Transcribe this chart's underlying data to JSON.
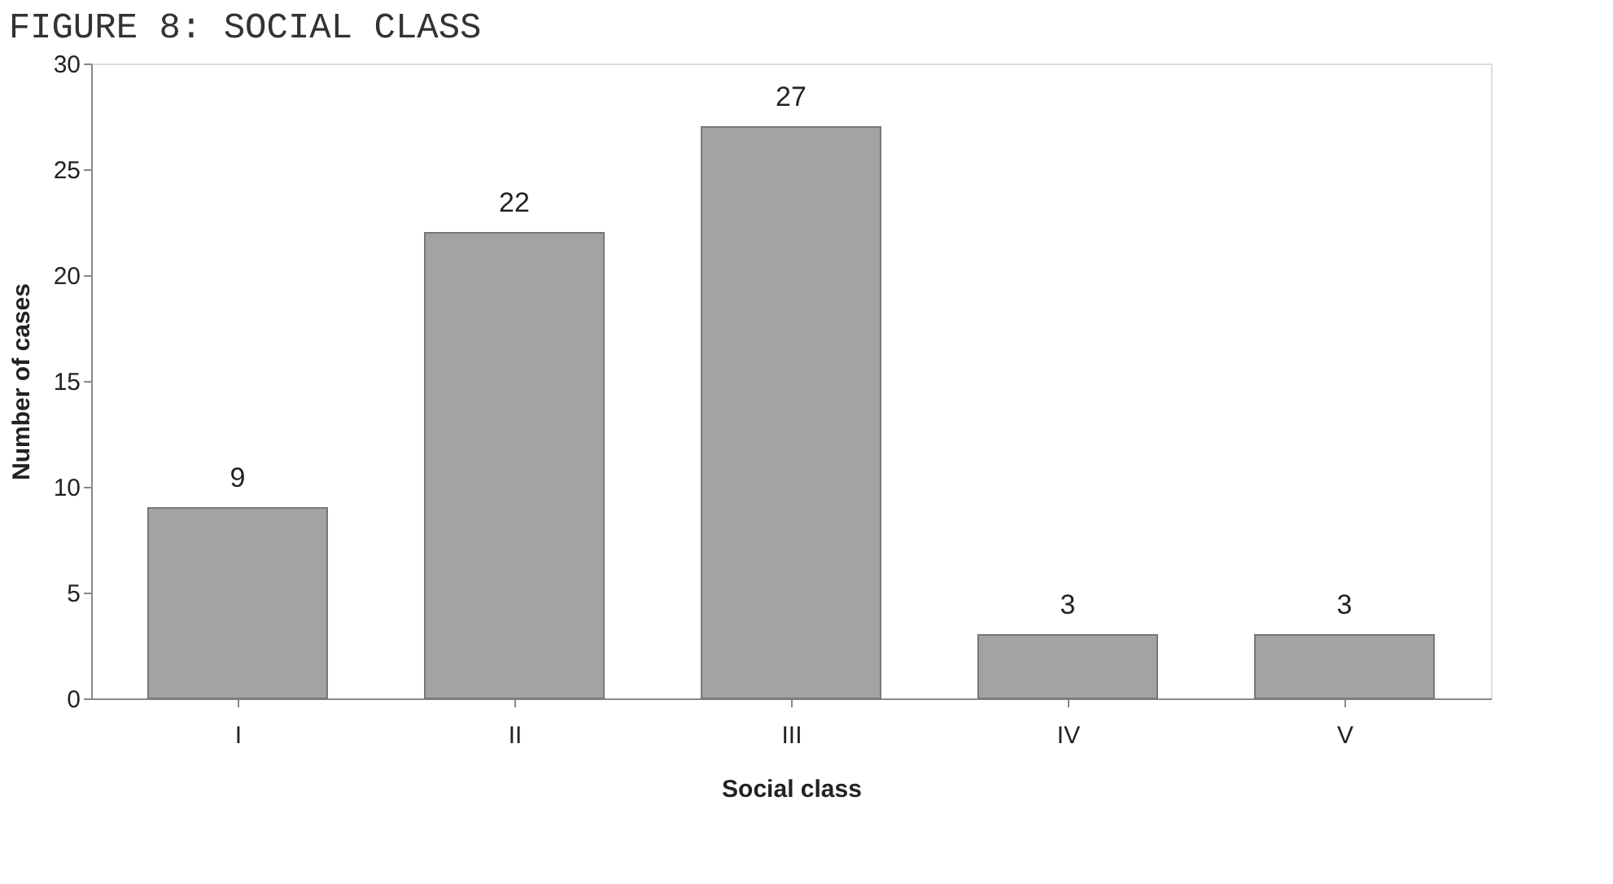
{
  "chart_data": {
    "type": "bar",
    "title": "FIGURE 8: SOCIAL CLASS",
    "xlabel": "Social class",
    "ylabel": "Number of cases",
    "categories": [
      "I",
      "II",
      "III",
      "IV",
      "V"
    ],
    "values": [
      9,
      22,
      27,
      3,
      3
    ],
    "color": "#a3a3a3",
    "ylim": [
      0,
      30
    ],
    "yticks": [
      0,
      5,
      10,
      15,
      20,
      25,
      30
    ],
    "data_labels": true,
    "grid": false
  }
}
